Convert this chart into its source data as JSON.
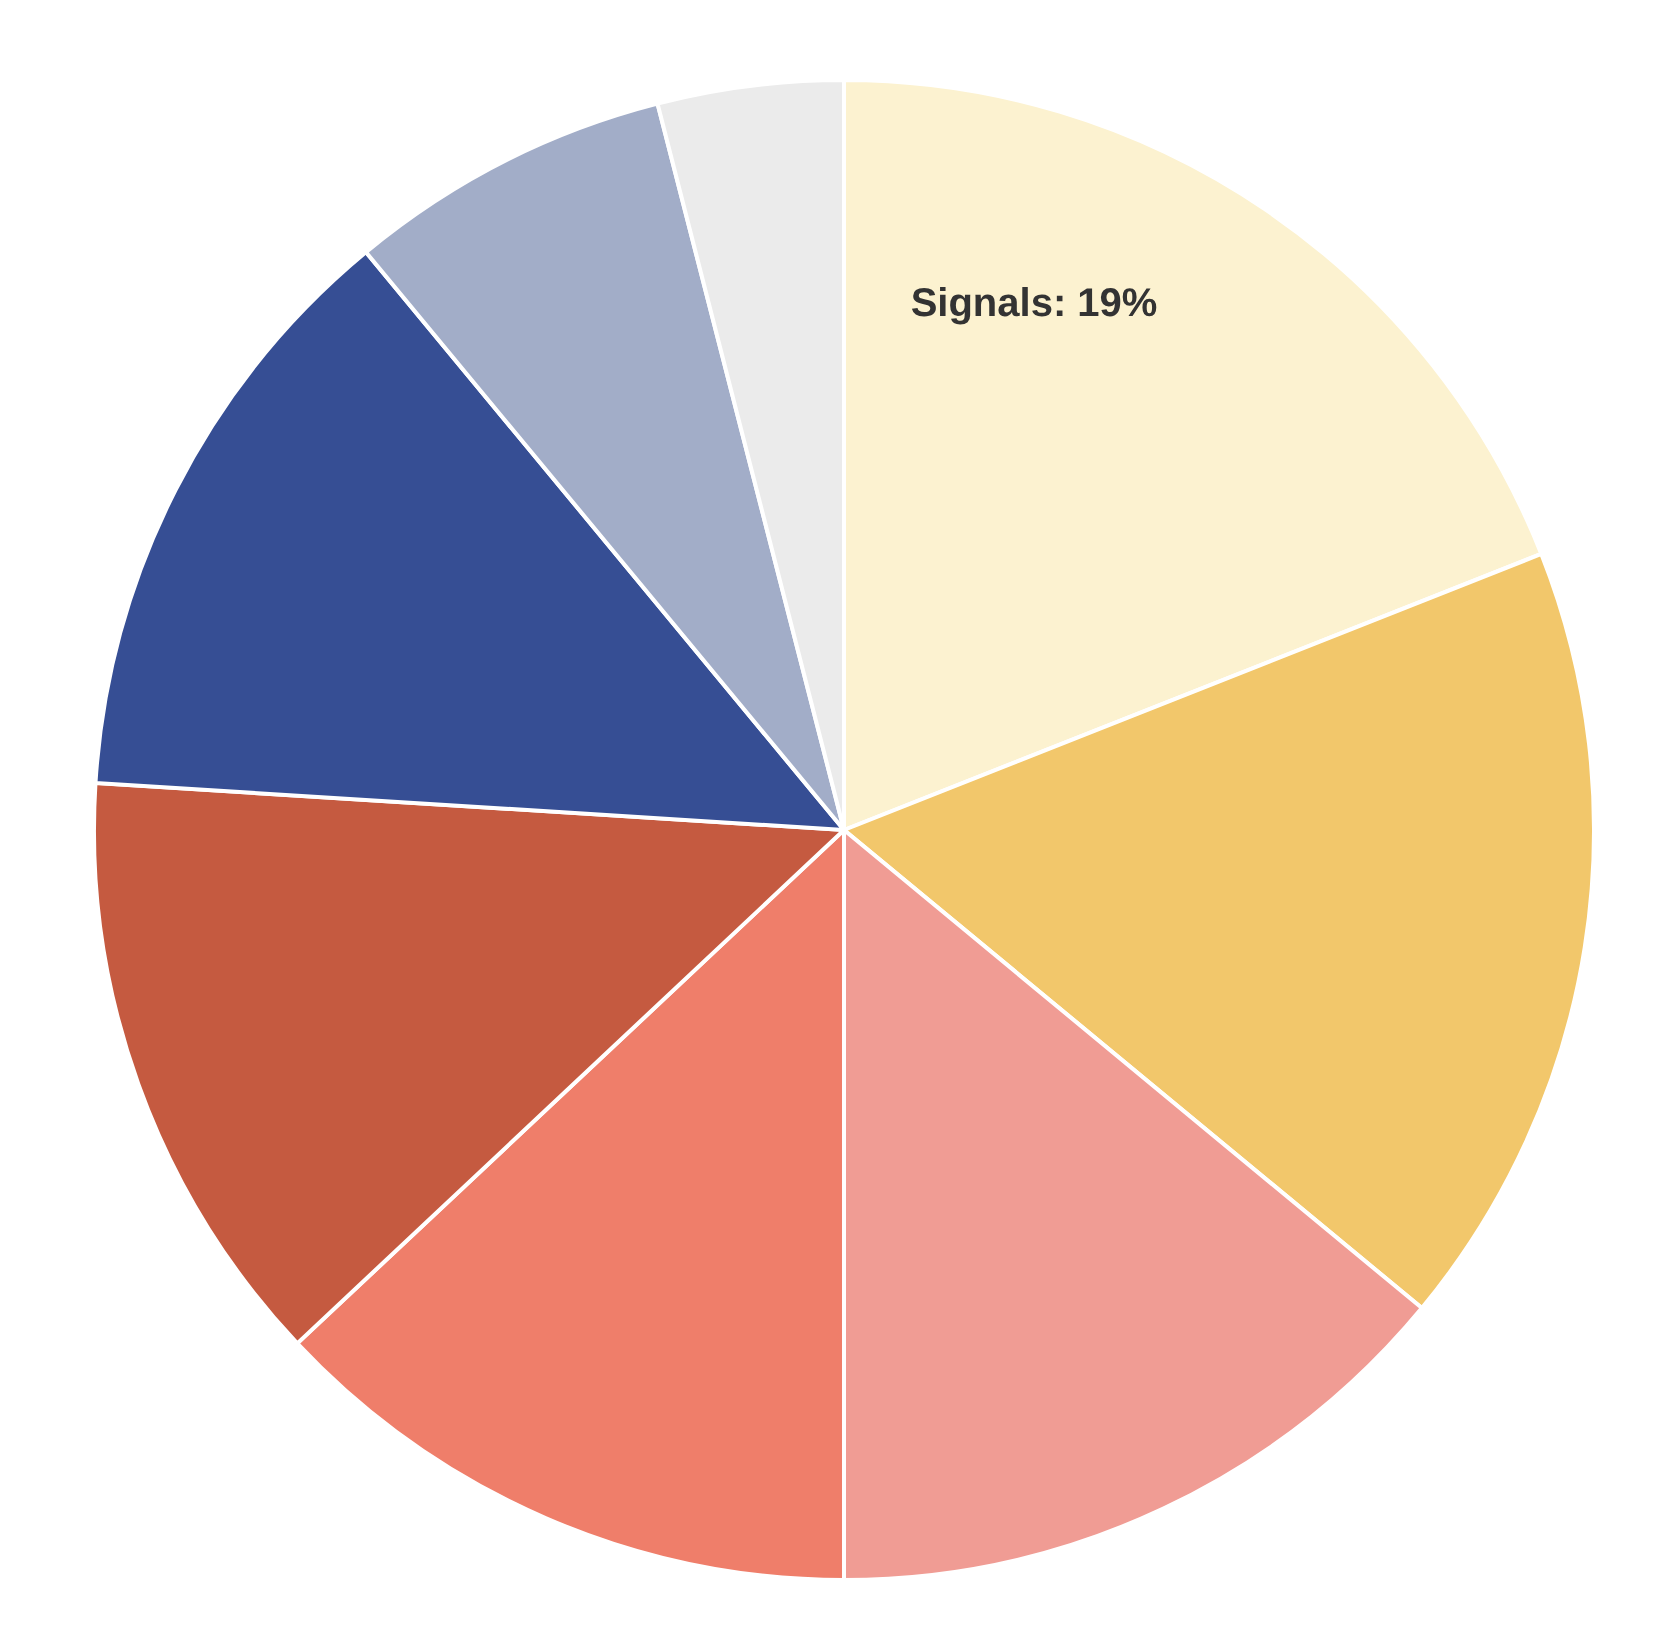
{
  "chart_data": {
    "type": "pie",
    "categories": [
      "Signals",
      null,
      null,
      null,
      null,
      null,
      null,
      null
    ],
    "values": [
      19,
      17,
      14,
      13,
      13,
      13,
      7,
      4
    ],
    "value_labels": [
      "19%",
      null,
      null,
      null,
      null,
      null,
      null,
      null
    ],
    "colors": [
      "#fcf2d0",
      "#f2c76b",
      "#f09c94",
      "#ef7e6a",
      "#c55a40",
      "#364e94",
      "#a2adc8",
      "#ebebeb"
    ]
  }
}
